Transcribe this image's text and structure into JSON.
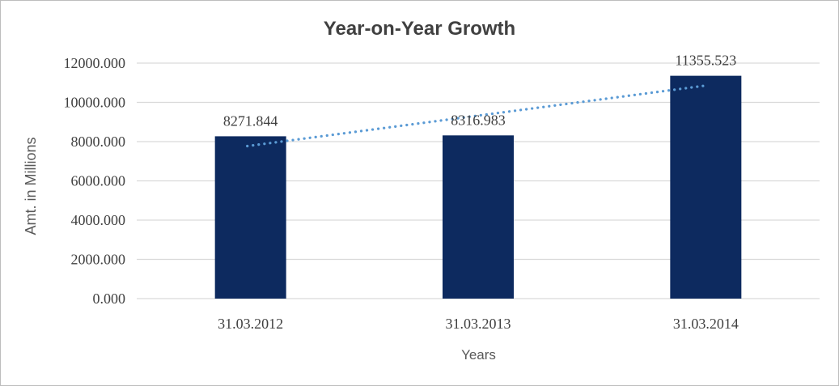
{
  "chart_data": {
    "type": "bar",
    "title": "Year-on-Year Growth",
    "xlabel": "Years",
    "ylabel": "Amt. in Millions",
    "categories": [
      "31.03.2012",
      "31.03.2013",
      "31.03.2014"
    ],
    "series": [
      {
        "name": "Amt. in Millions",
        "values": [
          8271.844,
          8316.983,
          11355.523
        ],
        "value_labels": [
          "8271.844",
          "8316.983",
          "11355.523"
        ]
      }
    ],
    "ylim": [
      0,
      12000
    ],
    "ytick_step": 2000,
    "ytick_decimals": 3,
    "grid": true,
    "legend": "none",
    "trendline": {
      "type": "linear",
      "style": "dotted"
    },
    "colors": {
      "bar": "#0D2A5F",
      "trend": "#5B9BD5",
      "grid": "#D9D9D9",
      "axis_text": "#404040",
      "title_text": "#404040",
      "axis_title_text": "#595959",
      "background": "#FFFFFF",
      "frame_border": "#BDBDBD"
    }
  }
}
